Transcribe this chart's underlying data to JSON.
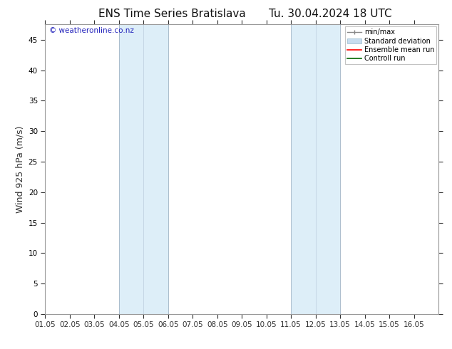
{
  "title": "ENS Time Series Bratislava",
  "title_right": "Tu. 30.04.2024 18 UTC",
  "ylabel": "Wind 925 hPa (m/s)",
  "watermark": "© weatheronline.co.nz",
  "xlim_start": 0,
  "xlim_end": 16,
  "ylim_bottom": 0,
  "ylim_top": 47.5,
  "yticks": [
    0,
    5,
    10,
    15,
    20,
    25,
    30,
    35,
    40,
    45
  ],
  "xtick_labels": [
    "01.05",
    "02.05",
    "03.05",
    "04.05",
    "05.05",
    "06.05",
    "07.05",
    "08.05",
    "09.05",
    "10.05",
    "11.05",
    "12.05",
    "13.05",
    "14.05",
    "15.05",
    "16.05"
  ],
  "shaded_regions": [
    {
      "xstart": 3,
      "xend": 5,
      "color": "#ddeef8"
    },
    {
      "xstart": 10,
      "xend": 12,
      "color": "#ddeef8"
    }
  ],
  "vertical_lines_dark": [
    3,
    5,
    10,
    12
  ],
  "vertical_lines_light": [
    4,
    11
  ],
  "background_color": "#ffffff",
  "plot_bg_color": "#ffffff",
  "legend_items": [
    {
      "label": "min/max",
      "color": "#aaaaaa",
      "lw": 1.2
    },
    {
      "label": "Standard deviation",
      "color": "#c8ddf0",
      "lw": 8
    },
    {
      "label": "Ensemble mean run",
      "color": "#ff0000",
      "lw": 1.2
    },
    {
      "label": "Controll run",
      "color": "#006600",
      "lw": 1.2
    }
  ],
  "title_fontsize": 11,
  "axis_label_fontsize": 9,
  "tick_fontsize": 7.5,
  "watermark_color": "#2222bb",
  "border_color": "#999999",
  "tick_color": "#333333"
}
